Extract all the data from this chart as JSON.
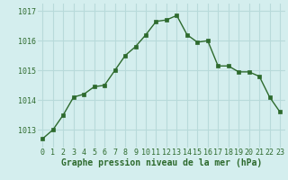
{
  "x": [
    0,
    1,
    2,
    3,
    4,
    5,
    6,
    7,
    8,
    9,
    10,
    11,
    12,
    13,
    14,
    15,
    16,
    17,
    18,
    19,
    20,
    21,
    22,
    23
  ],
  "y": [
    1012.7,
    1013.0,
    1013.5,
    1014.1,
    1014.2,
    1014.45,
    1014.5,
    1015.0,
    1015.5,
    1015.8,
    1016.2,
    1016.65,
    1016.7,
    1016.85,
    1016.2,
    1015.95,
    1016.0,
    1015.15,
    1015.15,
    1014.95,
    1014.95,
    1014.8,
    1014.1,
    1013.6
  ],
  "xlabel": "Graphe pression niveau de la mer (hPa)",
  "line_color": "#2d6a2d",
  "marker": "s",
  "marker_size": 2.5,
  "bg_color": "#d4eeee",
  "grid_color": "#b8dada",
  "tick_label_color": "#2d6a2d",
  "xlabel_color": "#2d6a2d",
  "ylim": [
    1012.4,
    1017.25
  ],
  "yticks": [
    1013,
    1014,
    1015,
    1016,
    1017
  ],
  "xticks": [
    0,
    1,
    2,
    3,
    4,
    5,
    6,
    7,
    8,
    9,
    10,
    11,
    12,
    13,
    14,
    15,
    16,
    17,
    18,
    19,
    20,
    21,
    22,
    23
  ],
  "xtick_labels": [
    "0",
    "1",
    "2",
    "3",
    "4",
    "5",
    "6",
    "7",
    "8",
    "9",
    "10",
    "11",
    "12",
    "13",
    "14",
    "15",
    "16",
    "17",
    "18",
    "19",
    "20",
    "21",
    "22",
    "23"
  ],
  "linewidth": 1.0,
  "xlabel_fontsize": 7.0,
  "tick_fontsize": 6.0
}
